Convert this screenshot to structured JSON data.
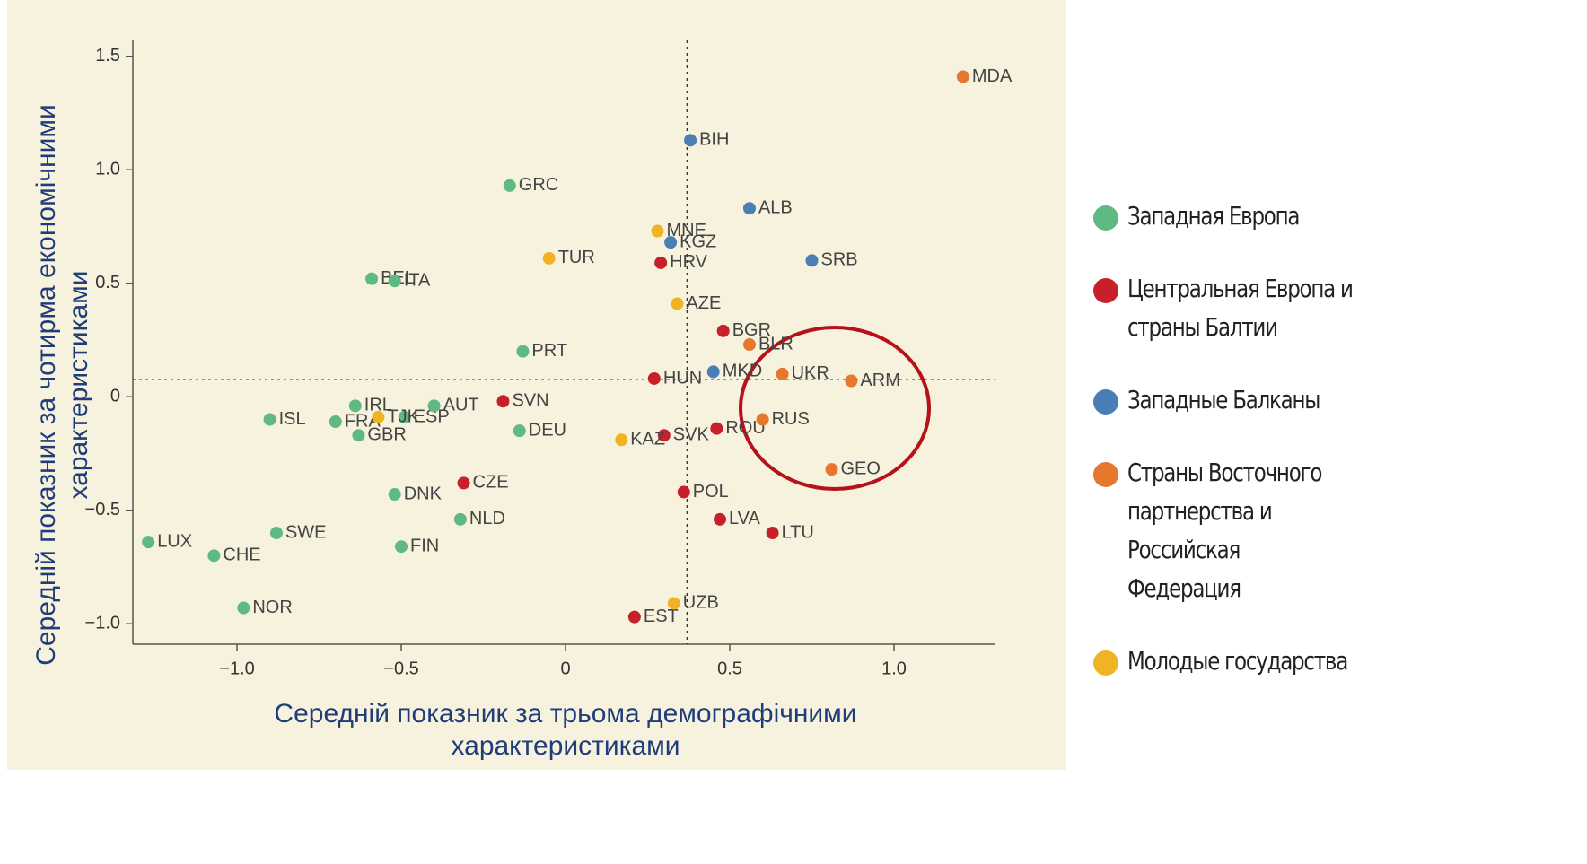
{
  "chart_data": {
    "type": "scatter",
    "x_label": "Середній показник за трьома демографічними характеристиками",
    "y_label": "Середній показник за чотирма економічними характеристиками",
    "xlim": [
      -1.317,
      1.306
    ],
    "ylim": [
      -1.09,
      1.57
    ],
    "xticks": [
      {
        "value": -1.0,
        "label": "−1.0"
      },
      {
        "value": -0.5,
        "label": "−0.5"
      },
      0,
      {
        "value": 0.5,
        "label": "0.5"
      },
      {
        "value": 1.0,
        "label": "1.0"
      }
    ],
    "yticks": [
      {
        "value": 1.5,
        "label": "1.5"
      },
      {
        "value": 1.0,
        "label": "1.0"
      },
      {
        "value": 0.5,
        "label": "0.5"
      },
      0,
      {
        "value": -0.5,
        "label": "−0.5"
      },
      {
        "value": -1.0,
        "label": "−1.0"
      }
    ],
    "ref_x": 0.37,
    "ref_y": 0.075,
    "series": [
      {
        "name": "Западная Европа",
        "color": "#5fb982",
        "labels": [
          "GRC",
          "BEL",
          "ITA",
          "PRT",
          "IRL",
          "ISL",
          "FRA",
          "GBR",
          "ESP",
          "AUT",
          "DEU",
          "DNK",
          "NLD",
          "FIN",
          "SWE",
          "LUX",
          "CHE",
          "NOR"
        ],
        "x": [
          -0.17,
          -0.59,
          -0.52,
          -0.13,
          -0.64,
          -0.9,
          -0.7,
          -0.63,
          -0.49,
          -0.4,
          -0.14,
          -0.52,
          -0.32,
          -0.5,
          -0.88,
          -1.27,
          -1.07,
          -0.98
        ],
        "values": [
          0.93,
          0.52,
          0.51,
          0.2,
          -0.04,
          -0.1,
          -0.11,
          -0.17,
          -0.09,
          -0.04,
          -0.15,
          -0.43,
          -0.54,
          -0.66,
          -0.6,
          -0.64,
          -0.7,
          -0.93
        ]
      },
      {
        "name": "Центральная Европа и страны Балтии",
        "color": "#c8202b",
        "labels": [
          "HRV",
          "BGR",
          "HUN",
          "SVN",
          "SVK",
          "ROU",
          "CZE",
          "POL",
          "LVA",
          "LTU",
          "EST"
        ],
        "x": [
          0.29,
          0.48,
          0.27,
          -0.19,
          0.3,
          0.46,
          -0.31,
          0.36,
          0.47,
          0.63,
          0.21
        ],
        "values": [
          0.59,
          0.29,
          0.08,
          -0.02,
          -0.17,
          -0.14,
          -0.38,
          -0.42,
          -0.54,
          -0.6,
          -0.97
        ]
      },
      {
        "name": "Западные Балканы",
        "color": "#4a7fb5",
        "labels": [
          "BIH",
          "ALB",
          "KGZ",
          "SRB",
          "MKD"
        ],
        "x": [
          0.38,
          0.56,
          0.32,
          0.75,
          0.45
        ],
        "values": [
          1.13,
          0.83,
          0.68,
          0.6,
          0.11
        ]
      },
      {
        "name": "Страны Восточного партнерства и Российская Федерация",
        "color": "#e8772e",
        "labels": [
          "MDA",
          "BLR",
          "UKR",
          "ARM",
          "RUS",
          "GEO"
        ],
        "x": [
          1.21,
          0.56,
          0.66,
          0.87,
          0.6,
          0.81
        ],
        "values": [
          1.41,
          0.23,
          0.1,
          0.07,
          -0.1,
          -0.32
        ]
      },
      {
        "name": "Молодые государства",
        "color": "#f0b323",
        "labels": [
          "MNE",
          "TUR",
          "AZE",
          "TJK",
          "KAZ",
          "UZB"
        ],
        "x": [
          0.28,
          -0.05,
          0.34,
          -0.57,
          0.17,
          0.33
        ],
        "values": [
          0.73,
          0.61,
          0.41,
          -0.09,
          -0.19,
          -0.91
        ]
      }
    ]
  }
}
